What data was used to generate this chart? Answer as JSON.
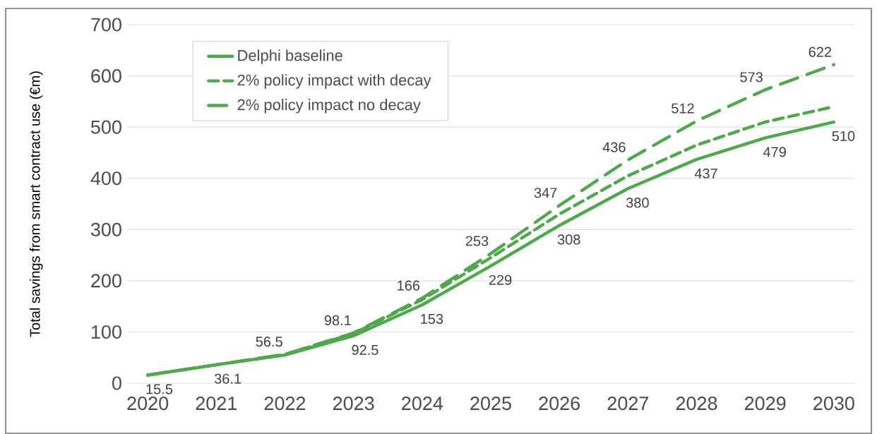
{
  "chart_data": {
    "type": "line",
    "ylabel": "Total savings from smart contract use (€m)",
    "categories": [
      "2020",
      "2021",
      "2022",
      "2023",
      "2024",
      "2025",
      "2026",
      "2027",
      "2028",
      "2029",
      "2030"
    ],
    "ylim": [
      0,
      700
    ],
    "yticks": [
      0,
      100,
      200,
      300,
      400,
      500,
      600,
      700
    ],
    "grid": "y",
    "legend": "top left",
    "marker": "none",
    "series": [
      {
        "name": "Delphi baseline",
        "color": "#4ea94b",
        "line_style": "solid",
        "values": [
          15.5,
          36.1,
          55,
          92.5,
          153,
          229,
          308,
          380,
          437,
          479,
          510
        ],
        "value_labels": [
          "15.5",
          "36.1",
          null,
          "92.5",
          "153",
          "229",
          "308",
          "380",
          "437",
          "479",
          "510"
        ]
      },
      {
        "name": "2% policy impact with decay",
        "color": "#4ea94b",
        "line_style": "dashed",
        "values": [
          16,
          36,
          56,
          97,
          163,
          245,
          330,
          405,
          465,
          510,
          540
        ]
      },
      {
        "name": "2% policy impact no decay",
        "color": "#4ea94b",
        "line_style": "dashed",
        "values": [
          16,
          36,
          56.5,
          98.1,
          166,
          253,
          347,
          436,
          512,
          573,
          622
        ],
        "value_labels": [
          null,
          null,
          "56.5",
          "98.1",
          "166",
          "253",
          "347",
          "436",
          "512",
          "573",
          "622"
        ]
      }
    ]
  }
}
